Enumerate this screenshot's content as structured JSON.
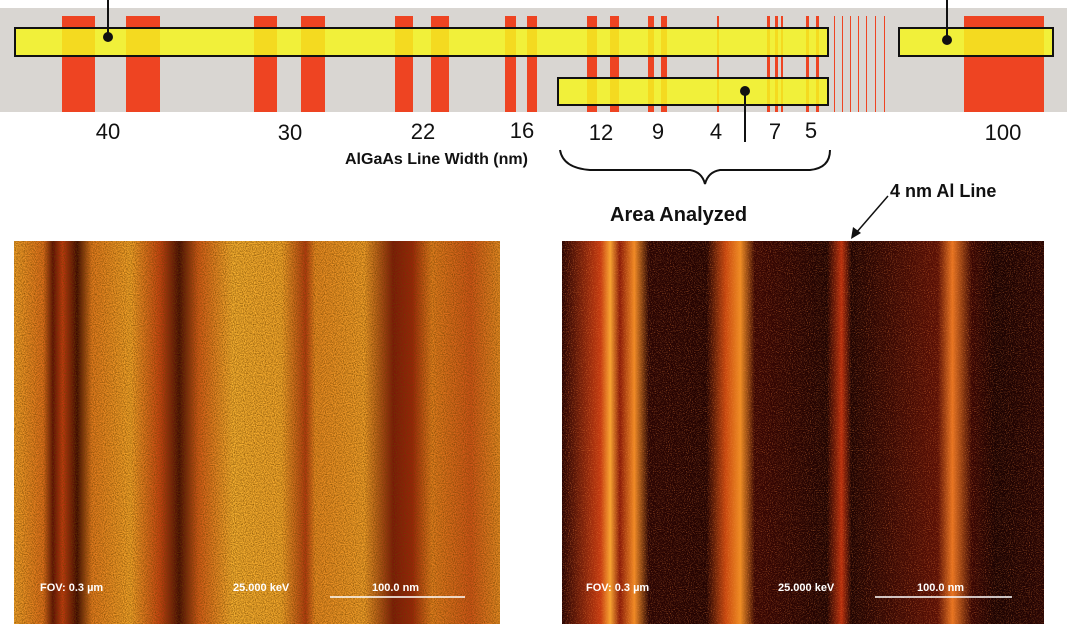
{
  "colors": {
    "background_strip": "#d9d6d2",
    "line_red": "#ee4422",
    "highlight_yellow": "#f4f420",
    "outline": "#111111"
  },
  "strip": {
    "line_width_labels": [
      "40",
      "30",
      "22",
      "16",
      "12",
      "9",
      "4",
      "7",
      "5",
      "100"
    ],
    "axis_caption": "AlGaAs Line Width (nm)"
  },
  "annotations": {
    "area_analyzed": "Area Analyzed",
    "al_line": "4 nm Al Line"
  },
  "maps": [
    {
      "fov": "FOV: 0.3 µm",
      "energy": "25.000 keV",
      "scale": "100.0 nm",
      "style": "bright"
    },
    {
      "fov": "FOV: 0.3 µm",
      "energy": "25.000 keV",
      "scale": "100.0 nm",
      "style": "dark"
    }
  ]
}
